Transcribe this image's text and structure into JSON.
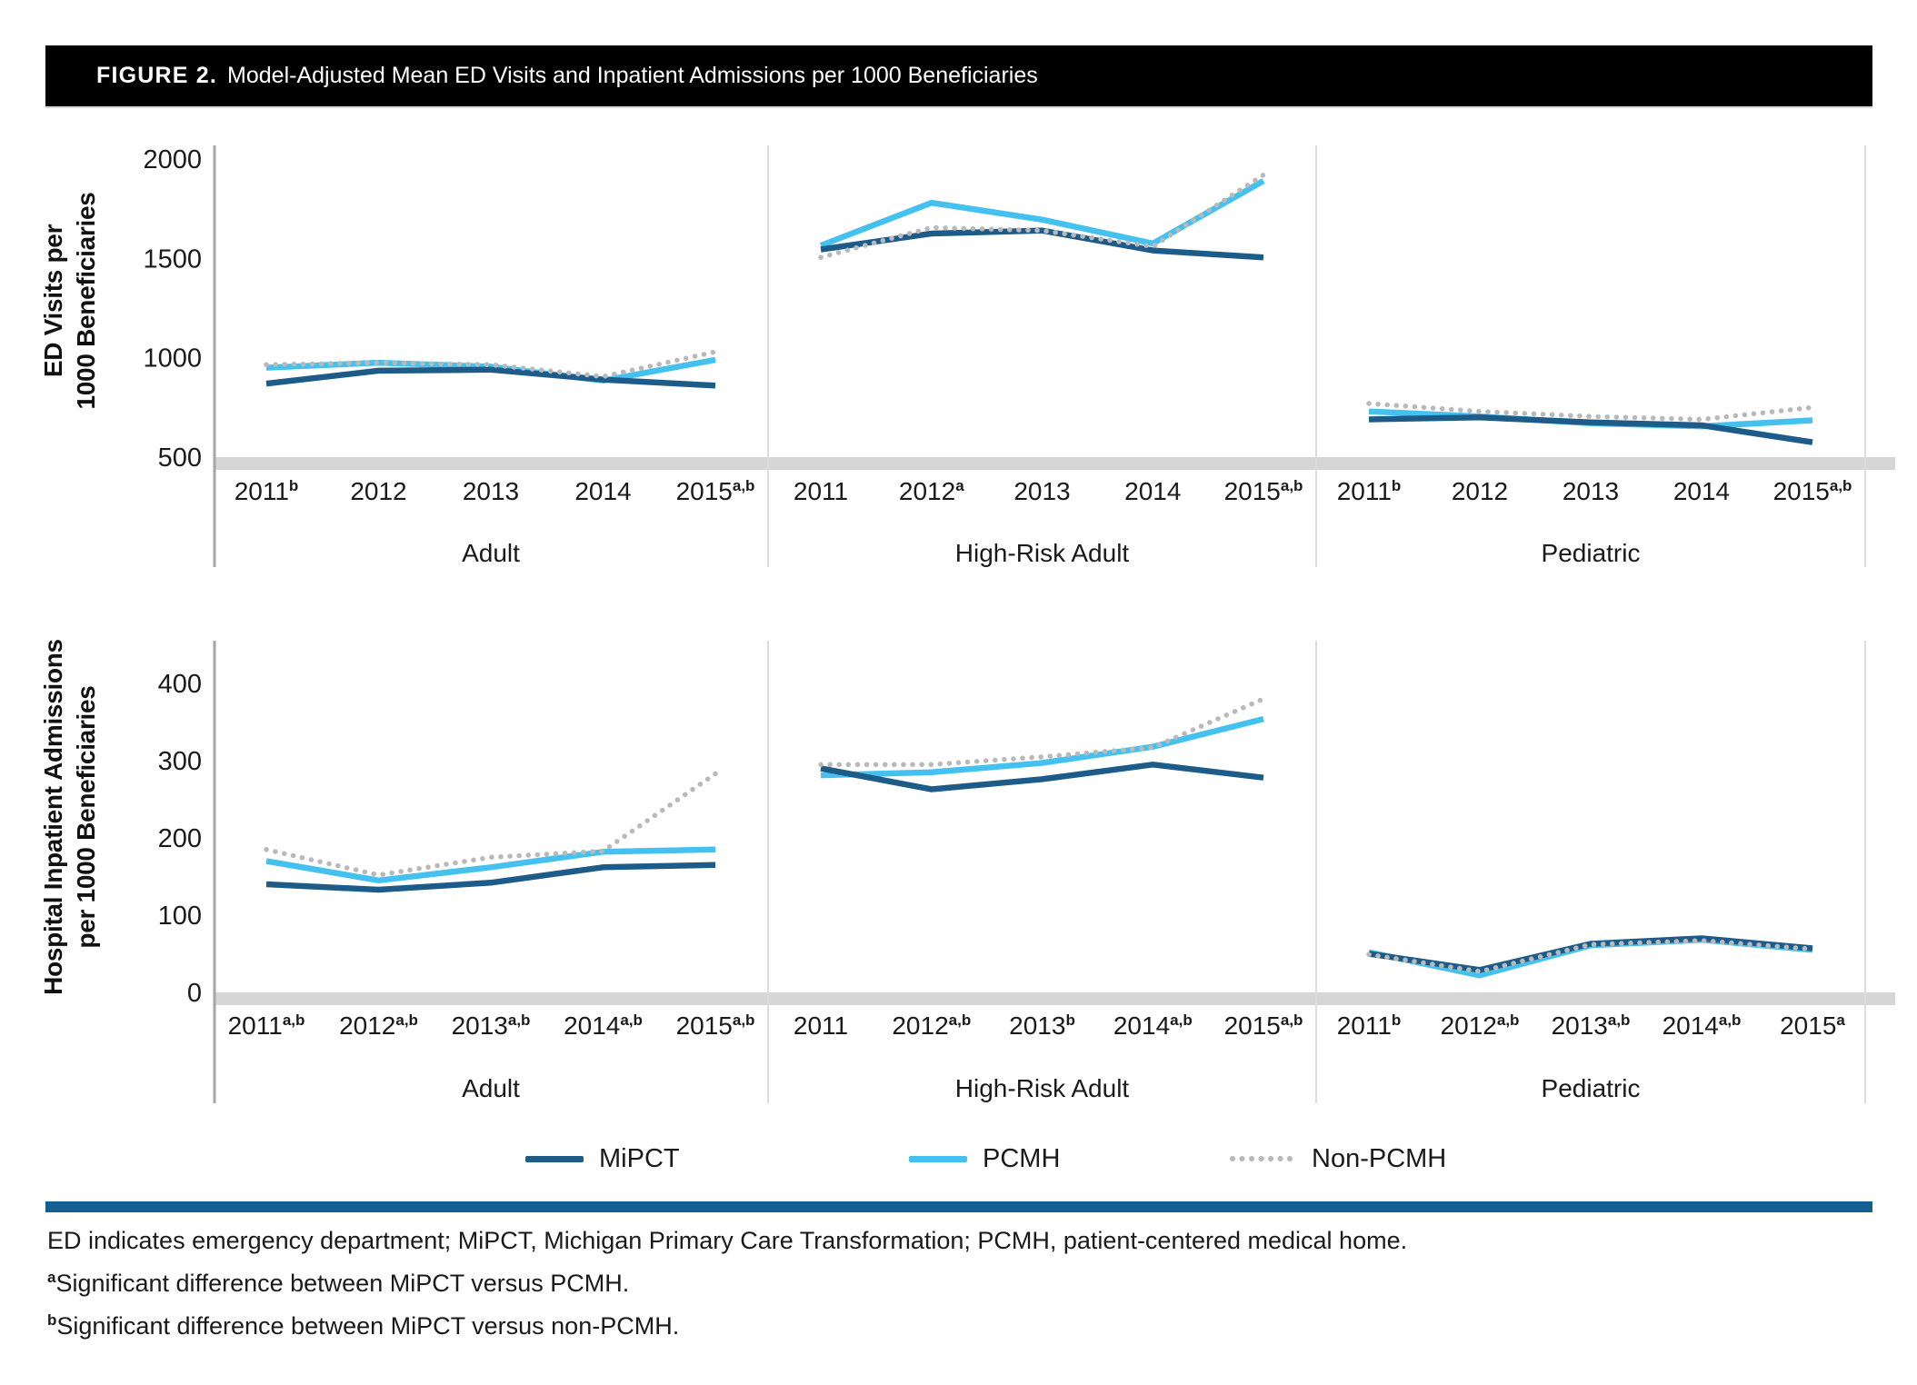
{
  "title": {
    "prefix": "FIGURE 2.",
    "text": "Model-Adjusted Mean ED Visits and Inpatient Admissions per 1000 Beneficiaries"
  },
  "colors": {
    "mipct": "#1d5b89",
    "pcmh": "#45c1ef",
    "non_pcmh": "#b9b9b9",
    "divider_bar": "#145f92",
    "title_bar_bg": "#000000",
    "axis_band": "#d6d6d6",
    "axis_line": "#a6a6a6",
    "panel_divider": "#dcdcdc"
  },
  "legend": {
    "position": "bottom-center",
    "items": [
      {
        "label": "MiPCT",
        "style": "solid",
        "color_key": "mipct"
      },
      {
        "label": "PCMH",
        "style": "solid",
        "color_key": "pcmh"
      },
      {
        "label": "Non-PCMH",
        "style": "dotted",
        "color_key": "non_pcmh"
      }
    ]
  },
  "footnotes": [
    {
      "sup": "",
      "text": "ED indicates emergency department; MiPCT, Michigan Primary Care Transformation; PCMH, patient-centered medical home."
    },
    {
      "sup": "a",
      "text": "Significant difference between MiPCT versus PCMH."
    },
    {
      "sup": "b",
      "text": "Significant difference between MiPCT versus non-PCMH."
    }
  ],
  "chart_data": [
    {
      "type": "line",
      "ylabel_lines": [
        "ED Visits per",
        "1000 Beneficiaries"
      ],
      "ylim": [
        500,
        2000
      ],
      "yticks": [
        2000,
        1500,
        1000,
        500
      ],
      "grid": false,
      "panels": [
        {
          "title": "Adult",
          "years": [
            {
              "label": "2011",
              "sup": "b"
            },
            {
              "label": "2012",
              "sup": ""
            },
            {
              "label": "2013",
              "sup": ""
            },
            {
              "label": "2014",
              "sup": ""
            },
            {
              "label": "2015",
              "sup": "a,b"
            }
          ],
          "series": [
            {
              "name": "MiPCT",
              "color_key": "mipct",
              "style": "solid",
              "values": [
                870,
                935,
                940,
                890,
                860
              ]
            },
            {
              "name": "PCMH",
              "color_key": "pcmh",
              "style": "solid",
              "values": [
                950,
                975,
                955,
                885,
                990
              ]
            },
            {
              "name": "Non-PCMH",
              "color_key": "non_pcmh",
              "style": "dotted",
              "values": [
                965,
                975,
                965,
                905,
                1030
              ]
            }
          ]
        },
        {
          "title": "High-Risk Adult",
          "years": [
            {
              "label": "2011",
              "sup": ""
            },
            {
              "label": "2012",
              "sup": "a"
            },
            {
              "label": "2013",
              "sup": ""
            },
            {
              "label": "2014",
              "sup": ""
            },
            {
              "label": "2015",
              "sup": "a,b"
            }
          ],
          "series": [
            {
              "name": "MiPCT",
              "color_key": "mipct",
              "style": "solid",
              "values": [
                1545,
                1625,
                1640,
                1540,
                1505
              ]
            },
            {
              "name": "PCMH",
              "color_key": "pcmh",
              "style": "solid",
              "values": [
                1565,
                1780,
                1695,
                1575,
                1890
              ]
            },
            {
              "name": "Non-PCMH",
              "color_key": "non_pcmh",
              "style": "dotted",
              "values": [
                1505,
                1655,
                1640,
                1560,
                1920
              ]
            }
          ]
        },
        {
          "title": "Pediatric",
          "years": [
            {
              "label": "2011",
              "sup": "b"
            },
            {
              "label": "2012",
              "sup": ""
            },
            {
              "label": "2013",
              "sup": ""
            },
            {
              "label": "2014",
              "sup": ""
            },
            {
              "label": "2015",
              "sup": "a,b"
            }
          ],
          "series": [
            {
              "name": "MiPCT",
              "color_key": "mipct",
              "style": "solid",
              "values": [
                690,
                700,
                675,
                660,
                575
              ]
            },
            {
              "name": "PCMH",
              "color_key": "pcmh",
              "style": "solid",
              "values": [
                730,
                705,
                670,
                655,
                685
              ]
            },
            {
              "name": "Non-PCMH",
              "color_key": "non_pcmh",
              "style": "dotted",
              "values": [
                770,
                730,
                705,
                690,
                750
              ]
            }
          ]
        }
      ]
    },
    {
      "type": "line",
      "ylabel_lines": [
        "Hospital Inpatient Admissions",
        "per 1000 Beneficiaries"
      ],
      "ylim": [
        0,
        400
      ],
      "yticks": [
        400,
        300,
        200,
        100,
        0
      ],
      "grid": false,
      "panels": [
        {
          "title": "Adult",
          "years": [
            {
              "label": "2011",
              "sup": "a,b"
            },
            {
              "label": "2012",
              "sup": "a,b"
            },
            {
              "label": "2013",
              "sup": "a,b"
            },
            {
              "label": "2014",
              "sup": "a,b"
            },
            {
              "label": "2015",
              "sup": "a,b"
            }
          ],
          "series": [
            {
              "name": "MiPCT",
              "color_key": "mipct",
              "style": "solid",
              "values": [
                140,
                133,
                142,
                162,
                165
              ]
            },
            {
              "name": "PCMH",
              "color_key": "pcmh",
              "style": "solid",
              "values": [
                170,
                145,
                162,
                182,
                185
              ]
            },
            {
              "name": "Non-PCMH",
              "color_key": "non_pcmh",
              "style": "dotted",
              "values": [
                185,
                152,
                175,
                183,
                283
              ]
            }
          ]
        },
        {
          "title": "High-Risk Adult",
          "years": [
            {
              "label": "2011",
              "sup": ""
            },
            {
              "label": "2012",
              "sup": "a,b"
            },
            {
              "label": "2013",
              "sup": "b"
            },
            {
              "label": "2014",
              "sup": "a,b"
            },
            {
              "label": "2015",
              "sup": "a,b"
            }
          ],
          "series": [
            {
              "name": "MiPCT",
              "color_key": "mipct",
              "style": "solid",
              "values": [
                290,
                263,
                276,
                295,
                278
              ]
            },
            {
              "name": "PCMH",
              "color_key": "pcmh",
              "style": "solid",
              "values": [
                281,
                285,
                297,
                318,
                354
              ]
            },
            {
              "name": "Non-PCMH",
              "color_key": "non_pcmh",
              "style": "dotted",
              "values": [
                295,
                295,
                305,
                317,
                380
              ]
            }
          ]
        },
        {
          "title": "Pediatric",
          "years": [
            {
              "label": "2011",
              "sup": "b"
            },
            {
              "label": "2012",
              "sup": "a,b"
            },
            {
              "label": "2013",
              "sup": "a,b"
            },
            {
              "label": "2014",
              "sup": "a,b"
            },
            {
              "label": "2015",
              "sup": "a"
            }
          ],
          "series": [
            {
              "name": "MiPCT",
              "color_key": "mipct",
              "style": "solid",
              "values": [
                50,
                29,
                63,
                70,
                57
              ]
            },
            {
              "name": "PCMH",
              "color_key": "pcmh",
              "style": "solid",
              "values": [
                52,
                22,
                61,
                68,
                55
              ]
            },
            {
              "name": "Non-PCMH",
              "color_key": "non_pcmh",
              "style": "dotted",
              "values": [
                49,
                27,
                62,
                67,
                56
              ]
            }
          ]
        }
      ]
    }
  ]
}
